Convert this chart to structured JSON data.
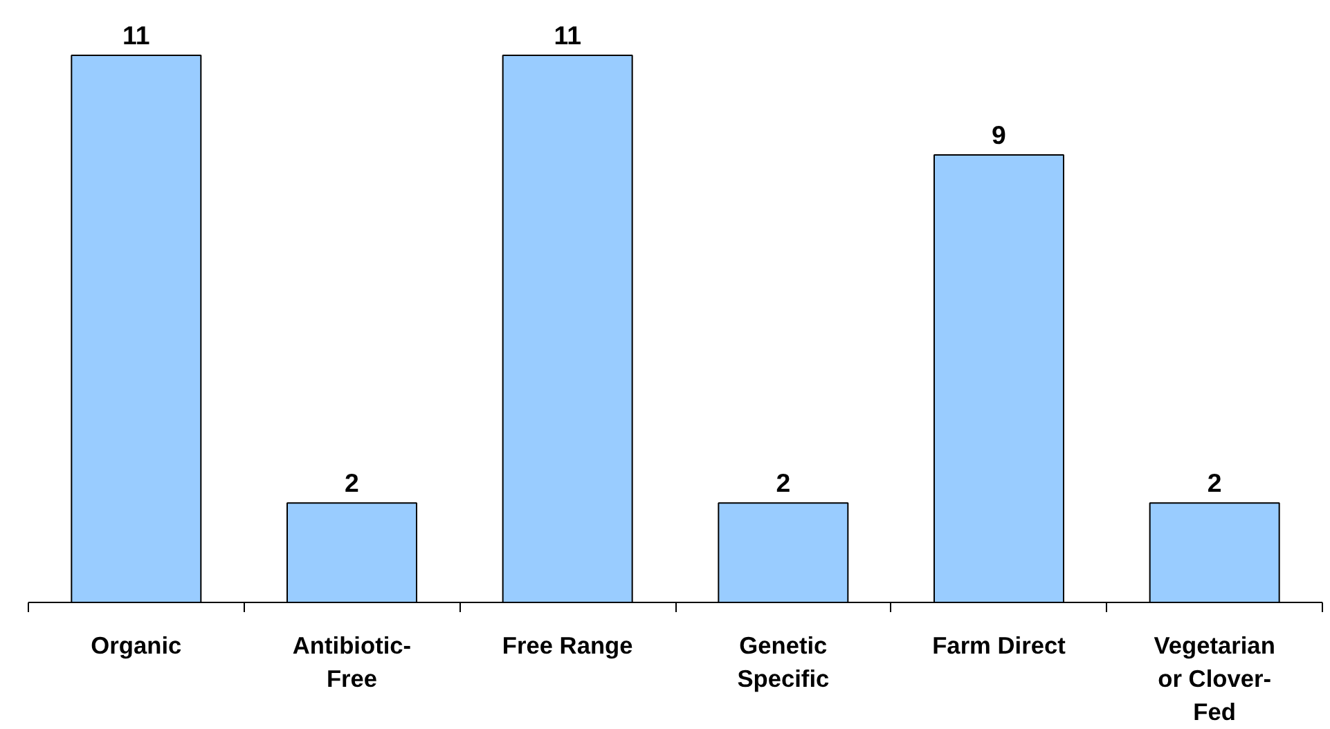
{
  "chart_data": {
    "type": "bar",
    "categories": [
      "Organic",
      "Antibiotic-\nFree",
      "Free Range",
      "Genetic\nSpecific",
      "Farm Direct",
      "Vegetarian\nor Clover-\nFed"
    ],
    "values": [
      11,
      2,
      11,
      2,
      9,
      2
    ],
    "color": "#99ccff",
    "data_labels": true,
    "grid": false
  }
}
